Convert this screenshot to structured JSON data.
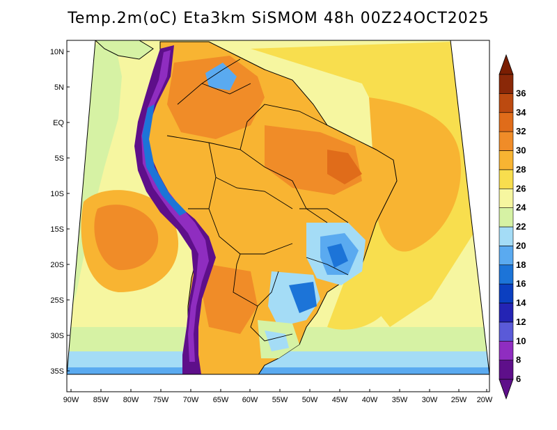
{
  "title": "Temp.2m(oC) Eta3km SiSMOM 48h 00Z24OCT2025",
  "lat_labels": [
    "10N",
    "5N",
    "EQ",
    "5S",
    "10S",
    "15S",
    "20S",
    "25S",
    "30S",
    "35S"
  ],
  "lon_labels": [
    "90W",
    "85W",
    "80W",
    "75W",
    "70W",
    "65W",
    "60W",
    "55W",
    "50W",
    "45W",
    "40W",
    "35W",
    "30W",
    "25W",
    "20W"
  ],
  "colorbar": {
    "labels": [
      "6",
      "8",
      "10",
      "12",
      "14",
      "16",
      "18",
      "20",
      "22",
      "24",
      "26",
      "28",
      "30",
      "32",
      "34",
      "36"
    ],
    "colors": [
      "#5e0f8a",
      "#8f2dc0",
      "#5a5ad8",
      "#2424b4",
      "#0b3fc0",
      "#1c74d8",
      "#5aaaf0",
      "#a4dcf6",
      "#d6f2a4",
      "#f6f6a0",
      "#f8de4e",
      "#f8b432",
      "#f08c28",
      "#e06c1a",
      "#bc4a10",
      "#8a2808"
    ],
    "under_color": "#5e0f8a",
    "over_color": "#7a1e02"
  },
  "colors": {
    "ocean_warm": "#f8de4e",
    "ocean_hot": "#f8b432",
    "ocean_mild": "#f6f6a0",
    "ocean_cool": "#d6f2a4",
    "andes": "#5e0f8a",
    "land": "#f8b432"
  }
}
